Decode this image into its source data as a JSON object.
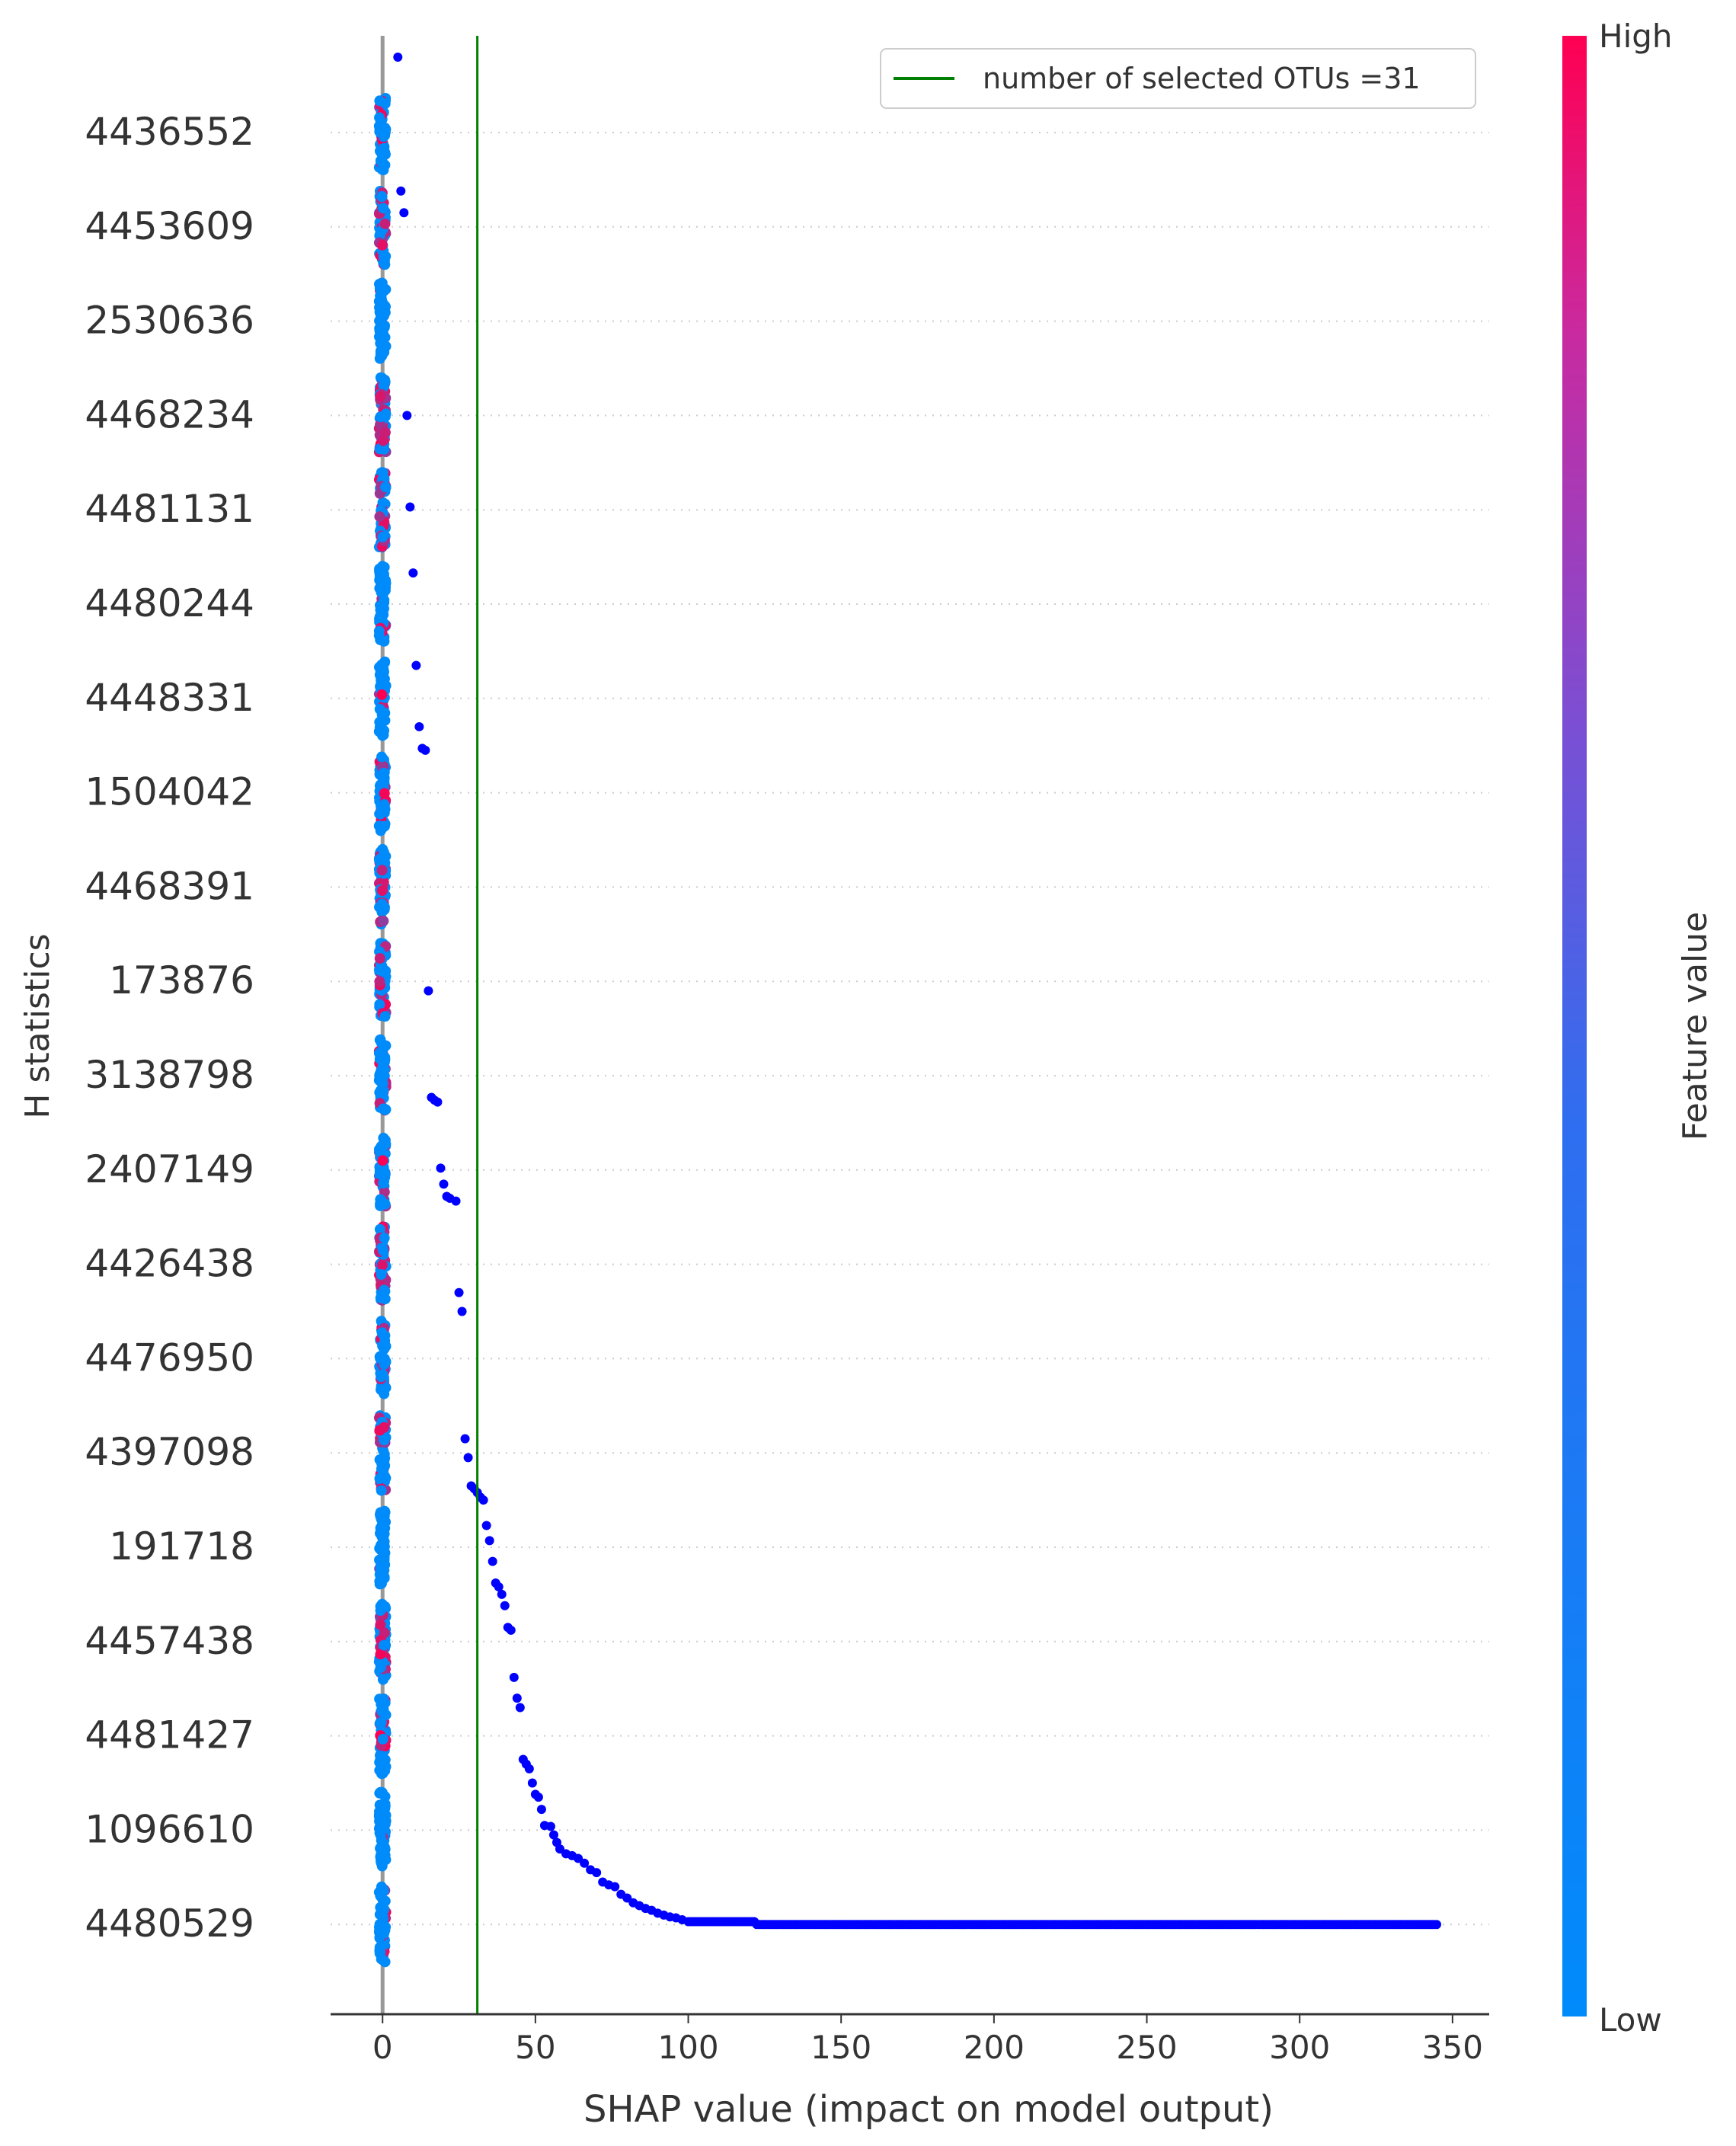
{
  "chart_data": {
    "type": "scatter",
    "subtype": "shap-beeswarm",
    "title": "",
    "xlabel": "SHAP value (impact on model output)",
    "ylabel": "H statistics",
    "xlim": [
      -17,
      362
    ],
    "xticks": [
      0,
      50,
      100,
      150,
      200,
      250,
      300,
      350
    ],
    "features": [
      "4436552",
      "4453609",
      "2530636",
      "4468234",
      "4481131",
      "4480244",
      "4448331",
      "1504042",
      "4468391",
      "173876",
      "3138798",
      "2407149",
      "4426438",
      "4476950",
      "4397098",
      "191718",
      "4457438",
      "4481427",
      "1096610",
      "4480529"
    ],
    "grid": "horizontal dotted per feature",
    "legend": {
      "position": "top-right",
      "entries": [
        {
          "label": "number of selected OTUs =31",
          "color": "#008000",
          "kind": "line"
        }
      ]
    },
    "reference_line": {
      "x": 31,
      "color": "#008000"
    },
    "zero_line": {
      "x": 0,
      "color": "#999999"
    },
    "colorbar": {
      "label": "Feature value",
      "high": "High",
      "low": "Low",
      "colors": [
        "#008bfb",
        "#ff0052"
      ]
    },
    "outlier_color": "#0000ff",
    "clusters": [
      {
        "feature": "4436552",
        "mix": 0.2
      },
      {
        "feature": "4453609",
        "mix": 0.5
      },
      {
        "feature": "2530636",
        "mix": 0.05
      },
      {
        "feature": "4468234",
        "mix": 0.85
      },
      {
        "feature": "4481131",
        "mix": 0.6
      },
      {
        "feature": "4480244",
        "mix": 0.2
      },
      {
        "feature": "4448331",
        "mix": 0.1
      },
      {
        "feature": "1504042",
        "mix": 0.4
      },
      {
        "feature": "4468391",
        "mix": 0.5
      },
      {
        "feature": "173876",
        "mix": 0.55
      },
      {
        "feature": "3138798",
        "mix": 0.3
      },
      {
        "feature": "2407149",
        "mix": 0.3
      },
      {
        "feature": "4426438",
        "mix": 0.7
      },
      {
        "feature": "4476950",
        "mix": 0.25
      },
      {
        "feature": "4397098",
        "mix": 0.45
      },
      {
        "feature": "191718",
        "mix": 0.1
      },
      {
        "feature": "4457438",
        "mix": 0.7
      },
      {
        "feature": "4481427",
        "mix": 0.4
      },
      {
        "feature": "1096610",
        "mix": 0.05
      },
      {
        "feature": "4480529",
        "mix": 0.3
      }
    ],
    "outlier_points": [
      {
        "x": 5,
        "row": -0.8
      },
      {
        "x": 6,
        "row": 0.62
      },
      {
        "x": 7,
        "row": 0.85
      },
      {
        "x": 8,
        "row": 3.0
      },
      {
        "x": 9,
        "row": 3.97
      },
      {
        "x": 10,
        "row": 4.67
      },
      {
        "x": 11,
        "row": 5.65
      },
      {
        "x": 12,
        "row": 6.3
      },
      {
        "x": 13,
        "row": 6.53
      },
      {
        "x": 14,
        "row": 6.55
      },
      {
        "x": 15,
        "row": 9.1
      },
      {
        "x": 16,
        "row": 10.23
      },
      {
        "x": 17,
        "row": 10.26
      },
      {
        "x": 18,
        "row": 10.28
      },
      {
        "x": 19,
        "row": 10.98
      },
      {
        "x": 20,
        "row": 11.15
      },
      {
        "x": 21,
        "row": 11.28
      },
      {
        "x": 22,
        "row": 11.3
      },
      {
        "x": 24,
        "row": 11.33
      },
      {
        "x": 25,
        "row": 12.3
      },
      {
        "x": 26,
        "row": 12.5
      },
      {
        "x": 27,
        "row": 13.85
      },
      {
        "x": 28,
        "row": 14.05
      },
      {
        "x": 29,
        "row": 14.35
      },
      {
        "x": 30,
        "row": 14.38
      },
      {
        "x": 31,
        "row": 14.42
      },
      {
        "x": 32,
        "row": 14.47
      },
      {
        "x": 33,
        "row": 14.5
      },
      {
        "x": 34,
        "row": 14.77
      },
      {
        "x": 35,
        "row": 14.93
      },
      {
        "x": 36,
        "row": 15.15
      },
      {
        "x": 37,
        "row": 15.38
      },
      {
        "x": 38,
        "row": 15.42
      },
      {
        "x": 39,
        "row": 15.5
      },
      {
        "x": 40,
        "row": 15.62
      },
      {
        "x": 41,
        "row": 15.85
      },
      {
        "x": 42,
        "row": 15.88
      },
      {
        "x": 43,
        "row": 16.38
      },
      {
        "x": 44,
        "row": 16.6
      },
      {
        "x": 45,
        "row": 16.7
      },
      {
        "x": 46,
        "row": 17.25
      },
      {
        "x": 47,
        "row": 17.3
      },
      {
        "x": 48,
        "row": 17.35
      },
      {
        "x": 49,
        "row": 17.5
      },
      {
        "x": 50,
        "row": 17.62
      },
      {
        "x": 51,
        "row": 17.65
      },
      {
        "x": 52,
        "row": 17.78
      },
      {
        "x": 53,
        "row": 17.95
      },
      {
        "x": 55,
        "row": 17.96
      },
      {
        "x": 56,
        "row": 18.05
      },
      {
        "x": 57,
        "row": 18.13
      },
      {
        "x": 58,
        "row": 18.2
      },
      {
        "x": 60,
        "row": 18.25
      },
      {
        "x": 62,
        "row": 18.27
      },
      {
        "x": 64,
        "row": 18.3
      },
      {
        "x": 66,
        "row": 18.35
      },
      {
        "x": 68,
        "row": 18.42
      },
      {
        "x": 70,
        "row": 18.45
      },
      {
        "x": 72,
        "row": 18.55
      },
      {
        "x": 74,
        "row": 18.58
      },
      {
        "x": 76,
        "row": 18.6
      },
      {
        "x": 78,
        "row": 18.68
      },
      {
        "x": 80,
        "row": 18.72
      },
      {
        "x": 82,
        "row": 18.77
      },
      {
        "x": 84,
        "row": 18.8
      },
      {
        "x": 86,
        "row": 18.83
      },
      {
        "x": 88,
        "row": 18.85
      },
      {
        "x": 90,
        "row": 18.88
      },
      {
        "x": 92,
        "row": 18.9
      },
      {
        "x": 94,
        "row": 18.92
      },
      {
        "x": 96,
        "row": 18.93
      },
      {
        "x": 98,
        "row": 18.95
      }
    ],
    "tail_segment": {
      "x_start": 100,
      "x_end": 345,
      "row": 18.97,
      "step_at": 122,
      "row_after_step": 19.0
    }
  }
}
